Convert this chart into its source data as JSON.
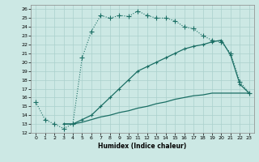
{
  "xlabel": "Humidex (Indice chaleur)",
  "bg_color": "#cce8e4",
  "grid_color": "#aad0cc",
  "line_color": "#1a6e64",
  "xlim": [
    -0.5,
    23.5
  ],
  "ylim": [
    12,
    26.5
  ],
  "xticks": [
    0,
    1,
    2,
    3,
    4,
    5,
    6,
    7,
    8,
    9,
    10,
    11,
    12,
    13,
    14,
    15,
    16,
    17,
    18,
    19,
    20,
    21,
    22,
    23
  ],
  "yticks": [
    12,
    13,
    14,
    15,
    16,
    17,
    18,
    19,
    20,
    21,
    22,
    23,
    24,
    25,
    26
  ],
  "line1_x": [
    0,
    1,
    2,
    3,
    4,
    5,
    6,
    7,
    8,
    9,
    10,
    11,
    12,
    13,
    14,
    15,
    16,
    17,
    18,
    19,
    20,
    21,
    22,
    23
  ],
  "line1_y": [
    15.5,
    13.5,
    13.0,
    12.5,
    13.0,
    20.5,
    23.5,
    25.3,
    25.0,
    25.3,
    25.2,
    25.8,
    25.3,
    25.0,
    25.0,
    24.7,
    24.0,
    23.8,
    23.0,
    22.5,
    22.3,
    21.0,
    17.8,
    16.5
  ],
  "line2_x": [
    3,
    4,
    5,
    6,
    7,
    8,
    9,
    10,
    11,
    12,
    13,
    14,
    15,
    16,
    17,
    18,
    19,
    20,
    21,
    22,
    23
  ],
  "line2_y": [
    13.0,
    13.0,
    13.5,
    14.0,
    15.0,
    16.0,
    17.0,
    18.0,
    19.0,
    19.5,
    20.0,
    20.5,
    21.0,
    21.5,
    21.8,
    22.0,
    22.3,
    22.5,
    20.8,
    17.5,
    16.5
  ],
  "line3_x": [
    3,
    4,
    5,
    6,
    7,
    8,
    9,
    10,
    11,
    12,
    13,
    14,
    15,
    16,
    17,
    18,
    19,
    20,
    21,
    22,
    23
  ],
  "line3_y": [
    13.0,
    13.0,
    13.2,
    13.5,
    13.8,
    14.0,
    14.3,
    14.5,
    14.8,
    15.0,
    15.3,
    15.5,
    15.8,
    16.0,
    16.2,
    16.3,
    16.5,
    16.5,
    16.5,
    16.5,
    16.5
  ]
}
